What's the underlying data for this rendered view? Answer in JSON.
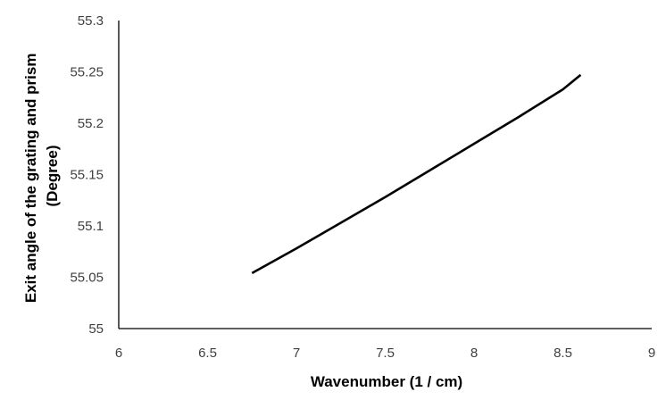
{
  "chart_data": {
    "type": "line",
    "title": "",
    "xlabel": "Wavenumber (1 / cm)",
    "ylabel_lines": [
      "Exit  angle of the grating and prism",
      "(Degree)"
    ],
    "xlim": [
      6,
      9
    ],
    "ylim": [
      55,
      55.3
    ],
    "x_ticks": [
      "6",
      "6.5",
      "7",
      "7.5",
      "8",
      "8.5",
      "9"
    ],
    "y_ticks": [
      "55",
      "55.05",
      "55.1",
      "55.15",
      "55.2",
      "55.25",
      "55.3"
    ],
    "grid": false,
    "legend": "none",
    "series": [
      {
        "color": "#000000",
        "x": [
          6.75,
          7.0,
          7.25,
          7.5,
          7.75,
          8.0,
          8.25,
          8.5,
          8.6
        ],
        "y": [
          55.054,
          55.078,
          55.103,
          55.128,
          55.154,
          55.18,
          55.206,
          55.233,
          55.247
        ]
      }
    ]
  }
}
